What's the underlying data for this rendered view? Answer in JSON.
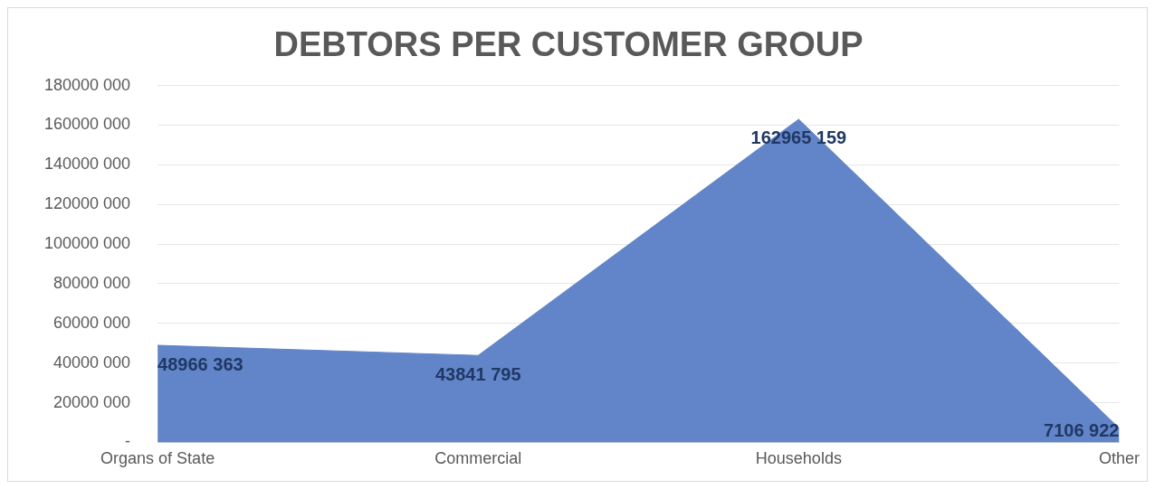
{
  "chart_data": {
    "type": "area",
    "title": "DEBTORS PER CUSTOMER GROUP",
    "categories": [
      "Organs of State",
      "Commercial",
      "Households",
      "Other"
    ],
    "values": [
      48966363,
      43841795,
      162965159,
      7106922
    ],
    "value_labels": [
      "48966 363",
      "43841 795",
      "162965 159",
      "7106 922"
    ],
    "color": "#6185c8",
    "ylim": [
      0,
      180000000
    ],
    "yticks": [
      {
        "value": 0,
        "label": "-"
      },
      {
        "value": 20000000,
        "label": "20000 000"
      },
      {
        "value": 40000000,
        "label": "40000 000"
      },
      {
        "value": 60000000,
        "label": "60000 000"
      },
      {
        "value": 80000000,
        "label": "80000 000"
      },
      {
        "value": 100000000,
        "label": "100000 000"
      },
      {
        "value": 120000000,
        "label": "120000 000"
      },
      {
        "value": 140000000,
        "label": "140000 000"
      },
      {
        "value": 160000000,
        "label": "160000 000"
      },
      {
        "value": 180000000,
        "label": "180000 000"
      }
    ],
    "grid": "y",
    "legend": false
  }
}
